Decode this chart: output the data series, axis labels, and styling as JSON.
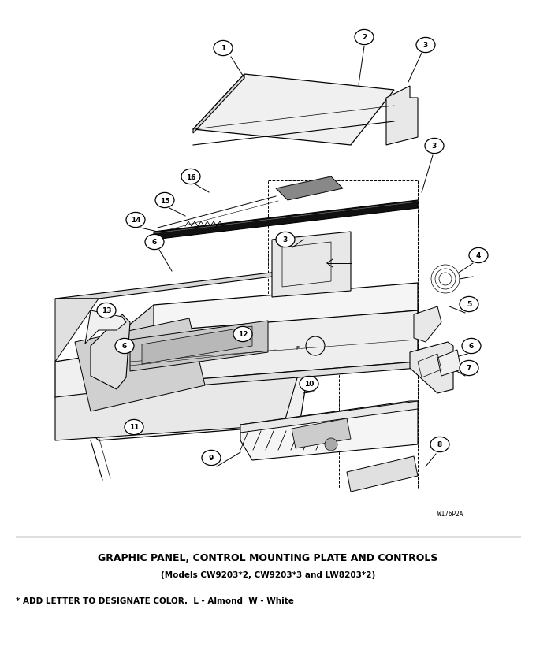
{
  "title": "GRAPHIC PANEL, CONTROL MOUNTING PLATE AND CONTROLS",
  "subtitle": "(Models CW9203*2, CW9203*3 and LW8203*2)",
  "footnote": "* ADD LETTER TO DESIGNATE COLOR.  L - Almond  W - White",
  "watermark": "W176P2A",
  "bg_color": "#ffffff",
  "line_color": "#000000",
  "figsize": [
    6.8,
    8.45
  ],
  "dpi": 100
}
